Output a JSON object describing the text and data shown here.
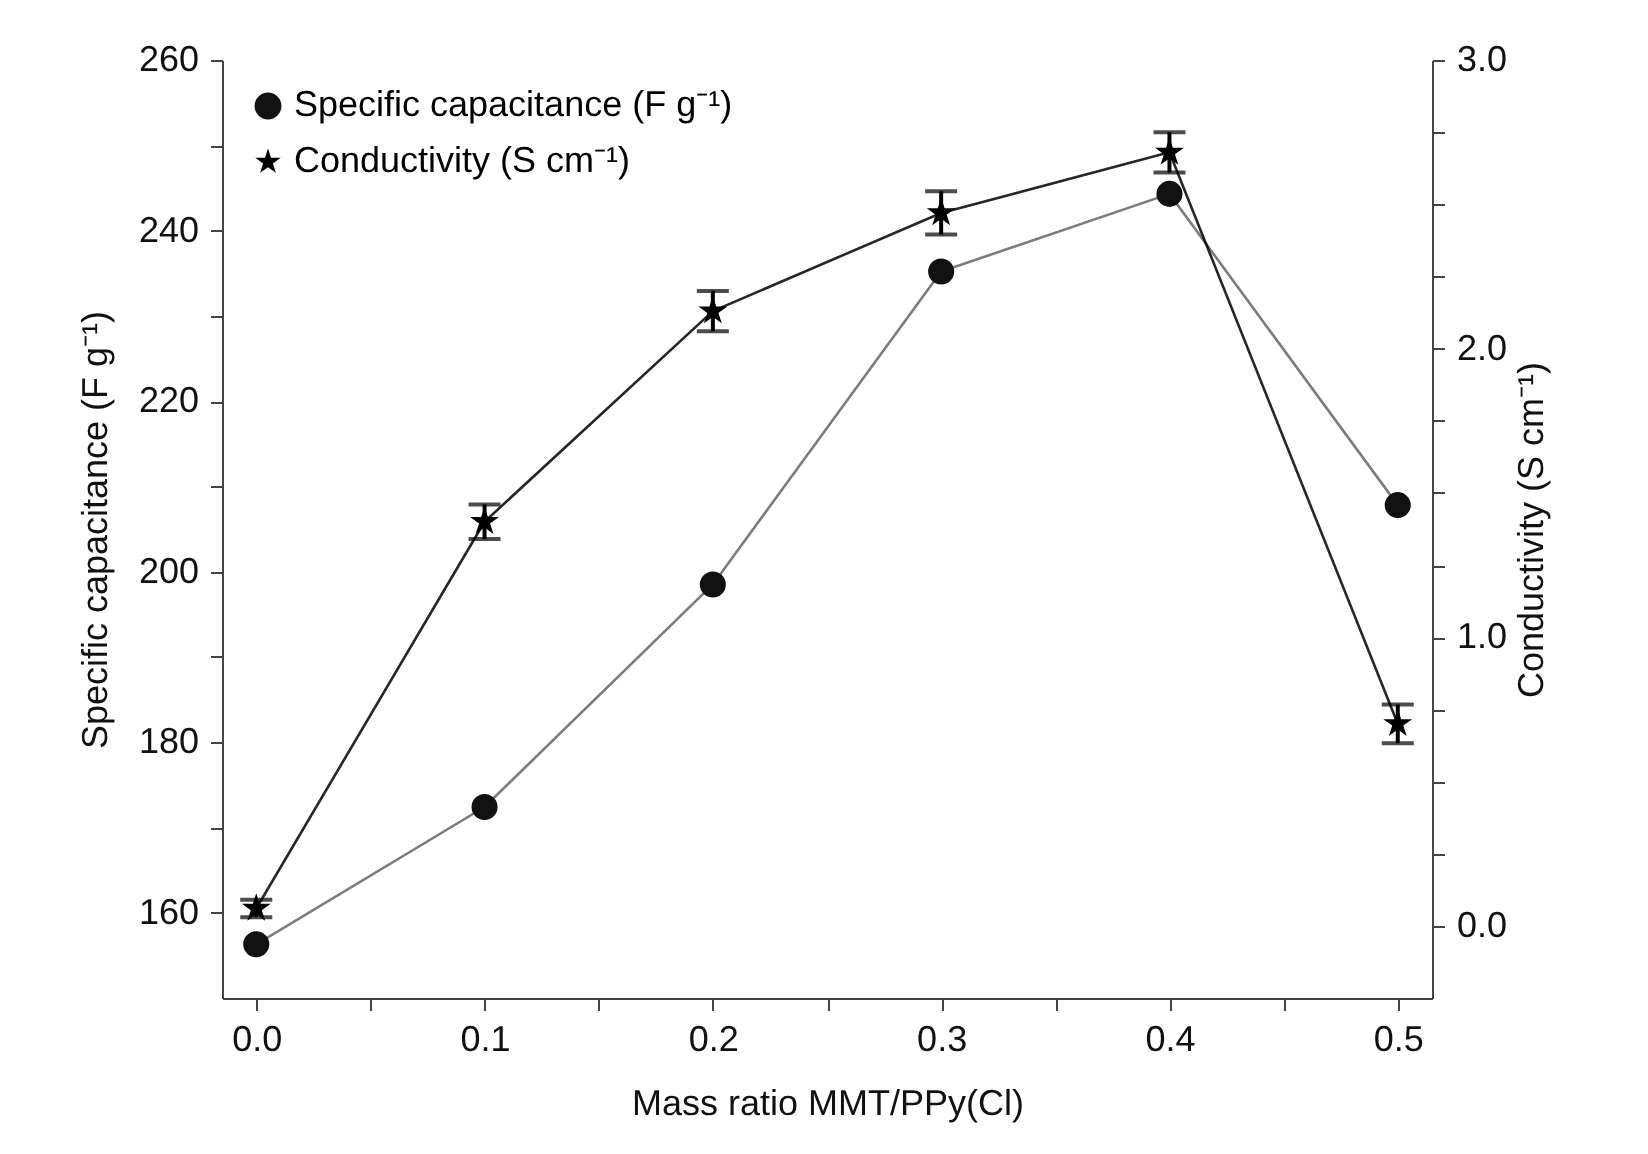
{
  "chart_data": {
    "type": "line",
    "xlabel": "Mass ratio MMT/PPy(Cl)",
    "ylabel": "Specific capacitance (F g⁻¹)",
    "y2label": "Conductivity (S cm⁻¹)",
    "x": [
      0,
      0.1,
      0.2,
      0.3,
      0.4,
      0.5
    ],
    "xlim": [
      -0.015,
      0.515
    ],
    "xticks": [
      {
        "value": 0,
        "label": "0.0"
      },
      {
        "value": 0.05,
        "label": null
      },
      0.1,
      {
        "value": 0.15,
        "label": null
      },
      0.2,
      {
        "value": 0.25,
        "label": null
      },
      0.3,
      {
        "value": 0.35,
        "label": null
      },
      0.4,
      {
        "value": 0.45,
        "label": null
      },
      0.5
    ],
    "ylim": [
      150,
      260
    ],
    "yticks": [
      160,
      {
        "value": 170,
        "label": null
      },
      180,
      {
        "value": 190,
        "label": null
      },
      200,
      {
        "value": 210,
        "label": null
      },
      220,
      {
        "value": 230,
        "label": null
      },
      240,
      {
        "value": 250,
        "label": null
      },
      260
    ],
    "y2lim": [
      -0.25,
      3
    ],
    "y2ticks": [
      {
        "value": 0,
        "label": "0.0"
      },
      {
        "value": 0.25,
        "label": null
      },
      {
        "value": 0.5,
        "label": null
      },
      {
        "value": 0.75,
        "label": null
      },
      {
        "value": 1,
        "label": "1.0"
      },
      {
        "value": 1.25,
        "label": null
      },
      {
        "value": 1.5,
        "label": null
      },
      {
        "value": 1.75,
        "label": null
      },
      {
        "value": 2,
        "label": "2.0"
      },
      {
        "value": 2.25,
        "label": null
      },
      {
        "value": 2.5,
        "label": null
      },
      {
        "value": 2.75,
        "label": null
      },
      {
        "value": 3,
        "label": "3.0"
      }
    ],
    "legend": "top left",
    "grid": false,
    "line_style": "solid",
    "series": [
      {
        "name": "Specific capacitance (F g⁻¹)",
        "color": "#111111",
        "marker": "circle",
        "values": [
          156.3,
          172.4,
          198.5,
          235.2,
          244.3,
          207.8
        ]
      },
      {
        "name": "Conductivity (S cm⁻¹)",
        "color": "#000000",
        "marker": "star",
        "axis": "y2",
        "values": [
          0.06,
          1.4,
          2.13,
          2.47,
          2.68,
          0.7
        ],
        "errors": [
          0.03,
          0.06,
          0.07,
          0.075,
          0.07,
          0.067
        ]
      }
    ]
  }
}
